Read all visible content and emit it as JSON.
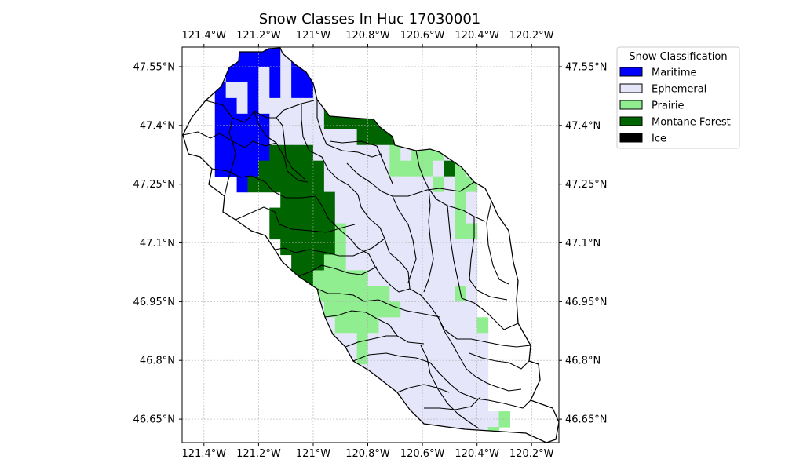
{
  "chart_data": {
    "type": "heatmap",
    "title": "Snow Classes In Huc 17030001",
    "x_ticks": [
      "121.4°W",
      "121.2°W",
      "121°W",
      "120.8°W",
      "120.6°W",
      "120.4°W",
      "120.2°W"
    ],
    "x_tick_values": [
      -121.4,
      -121.2,
      -121.0,
      -120.8,
      -120.6,
      -120.4,
      -120.2
    ],
    "y_ticks": [
      "47.55°N",
      "47.4°N",
      "47.25°N",
      "47.1°N",
      "46.95°N",
      "46.8°N",
      "46.65°N"
    ],
    "y_tick_values": [
      47.55,
      47.4,
      47.25,
      47.1,
      46.95,
      46.8,
      46.65
    ],
    "xlim": [
      -121.48,
      -120.1
    ],
    "ylim": [
      46.59,
      47.6
    ],
    "grid": true,
    "legend": {
      "title": "Snow Classification",
      "placement": "outside-top-right",
      "entries": [
        {
          "label": "Maritime",
          "color": "#0000ff"
        },
        {
          "label": "Ephemeral",
          "color": "#e6e6fa"
        },
        {
          "label": "Prairie",
          "color": "#90ee90"
        },
        {
          "label": "Montane Forest",
          "color": "#006400"
        },
        {
          "label": "Ice",
          "color": "#000000"
        }
      ]
    },
    "grid_origin": {
      "lon": -121.48,
      "lat": 46.59
    },
    "cell_size_degrees": 0.04,
    "class_codes": {
      "M": "Maritime",
      "E": "Ephemeral",
      "P": "Prairie",
      "F": "Montane Forest",
      "I": "Ice"
    },
    "cell_rows": [
      "......MMMM.................",
      "......MMMM.................",
      "....MMMMMMM................",
      "....MMMMMMMM...............",
      "..MMMMMMMMMM...............",
      "..MMMMMMMMMMEFFFF..........",
      "..MMMMMMMEMMEFFFF..........",
      "MMMMMMMMMEMMMFFFFFF........",
      "MMMMMMMMMEMMMFFFFFFF.......",
      "MMEEMMMEMEMMMFFFFFFFF......",
      "...MEEMEMEMMEFFFFFFFFFFFF..",
      "...MMEMEEEEEEFFFFFFFFFFFF..",
      "...MMMMMEEEEEFFFFFFFFFFFF..",
      "...MMMMMEEEEEEEEFFFFFFFFEP.",
      "...MMMMMFFFFEEEEEEEPEPPPEP.",
      "...MMMMFFFFFFEEEEEEPPPPEFP.",
      ".....MFFFFFFFEEEEEEEEEEPEPP",
      ".........FFFFFEEEEEEEEEEEPE",
      "........FFFFFFEEEEEEEEEEEPE",
      "........FFFFFFPEEEEEEEEEEPP",
      ".........FFFFFPEEEEEEEEEEEE",
      "..........FFFPPEEEEEEEEEEEE",
      "..........FFPPPPPEEEEEEEEEE",
      "..........FFPPPPPPPEEEEEEPE",
      "..........FFEPPPPPPPEEEEEEE",
      "..........FFEEPPPPEEEEEEEEEP",
      "...........FPPEEPEEEEEEEEEEE",
      "...........FPPEEPEEEEEEEEEEE",
      "...............EEEEEEEEEEEEE",
      "................EEEEEEEEEEEE",
      "..................EEEEEEEEEE",
      "...................EEEEEEEEEEP",
      "......................EEEEEEP"
    ]
  }
}
